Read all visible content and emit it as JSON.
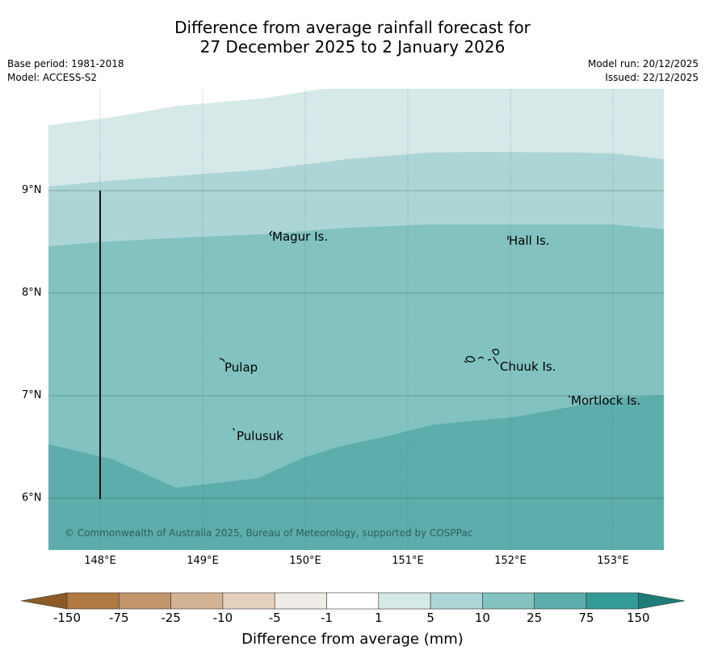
{
  "title": {
    "line1": "Difference from average rainfall forecast for",
    "line2": "27 December 2025 to 2 January 2026"
  },
  "meta": {
    "base_period": "Base period: 1981-2018",
    "model": "Model: ACCESS-S2",
    "model_run": "Model run: 20/12/2025",
    "issued": "Issued: 22/12/2025"
  },
  "axes": {
    "latitudes": [
      "9°N",
      "8°N",
      "7°N",
      "6°N"
    ],
    "longitudes": [
      "148°E",
      "149°E",
      "150°E",
      "151°E",
      "152°E",
      "153°E"
    ]
  },
  "places": [
    "Magur Is.",
    "Hall Is.",
    "Pulap",
    "Chuuk Is.",
    "Mortlock Is.",
    "Pulusuk"
  ],
  "copyright": "© Commonwealth of Australia 2025, Bureau of Meteorology, supported by COSPPac",
  "colorbar": {
    "title": "Difference from average (mm)",
    "ticks": [
      "-150",
      "-75",
      "-25",
      "-10",
      "-5",
      "-1",
      "1",
      "5",
      "10",
      "25",
      "75",
      "150"
    ],
    "colors": {
      "below_min": "#8c5a26",
      "c1": "#b07a42",
      "c2": "#c3956a",
      "c3": "#d4b394",
      "c4": "#e4d0bd",
      "c5": "#efebe7",
      "c6": "#ffffff",
      "c7": "#d5e9e8",
      "c8": "#acd6d5",
      "c9": "#82c2c0",
      "c10": "#5cadac",
      "c11": "#349a97",
      "above_max": "#1e7c79"
    }
  }
}
